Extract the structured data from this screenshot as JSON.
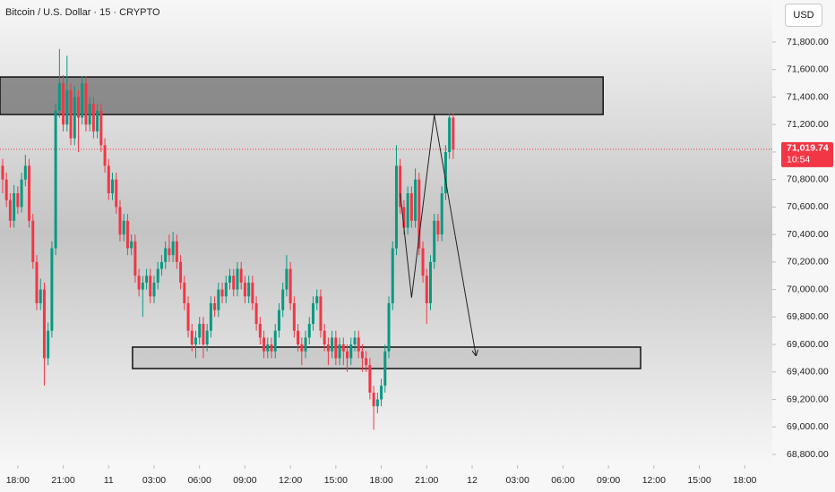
{
  "chart_data": {
    "type": "candlestick",
    "title": "Bitcoin / U.S. Dollar · 15 · CRYPTO",
    "currency_button": "USD",
    "up_color": "#089981",
    "down_color": "#f23645",
    "ylim": [
      68722,
      72106
    ],
    "xlim": [
      -0.7,
      202.8
    ],
    "yticks": [
      {
        "value": 68800,
        "label": "68,800.00"
      },
      {
        "value": 69000,
        "label": "69,000.00"
      },
      {
        "value": 69200,
        "label": "69,200.00"
      },
      {
        "value": 69400,
        "label": "69,400.00"
      },
      {
        "value": 69600,
        "label": "69,600.00"
      },
      {
        "value": 69800,
        "label": "69,800.00"
      },
      {
        "value": 70000,
        "label": "70,000.00"
      },
      {
        "value": 70200,
        "label": "70,200.00"
      },
      {
        "value": 70400,
        "label": "70,400.00"
      },
      {
        "value": 70600,
        "label": "70,600.00"
      },
      {
        "value": 70800,
        "label": "70,800.00"
      },
      {
        "value": 71000,
        "label": "71,000.00"
      },
      {
        "value": 71200,
        "label": "71,200.00"
      },
      {
        "value": 71400,
        "label": "71,400.00"
      },
      {
        "value": 71600,
        "label": "71,600.00"
      },
      {
        "value": 71800,
        "label": "71,800.00"
      }
    ],
    "xticks": [
      {
        "value": 4,
        "label": "18:00"
      },
      {
        "value": 16,
        "label": "21:00"
      },
      {
        "value": 28,
        "label": "11"
      },
      {
        "value": 40,
        "label": "03:00"
      },
      {
        "value": 52,
        "label": "06:00"
      },
      {
        "value": 64,
        "label": "09:00"
      },
      {
        "value": 76,
        "label": "12:00"
      },
      {
        "value": 88,
        "label": "15:00"
      },
      {
        "value": 100,
        "label": "18:00"
      },
      {
        "value": 112,
        "label": "21:00"
      },
      {
        "value": 124,
        "label": "12"
      },
      {
        "value": 136,
        "label": "03:00"
      },
      {
        "value": 148,
        "label": "06:00"
      },
      {
        "value": 160,
        "label": "09:00"
      },
      {
        "value": 172,
        "label": "12:00"
      },
      {
        "value": 184,
        "label": "15:00"
      },
      {
        "value": 196,
        "label": "18:00"
      }
    ],
    "candles": [
      [
        70900,
        70950,
        70700,
        70800
      ],
      [
        70800,
        70850,
        70600,
        70650
      ],
      [
        70650,
        70700,
        70450,
        70500
      ],
      [
        70500,
        70760,
        70450,
        70700
      ],
      [
        70700,
        70750,
        70550,
        70600
      ],
      [
        70600,
        70850,
        70560,
        70800
      ],
      [
        70800,
        70980,
        70750,
        70900
      ],
      [
        70900,
        70950,
        70450,
        70500
      ],
      [
        70500,
        70550,
        70150,
        70200
      ],
      [
        70200,
        70250,
        69850,
        69900
      ],
      [
        69900,
        70080,
        69850,
        70000
      ],
      [
        70000,
        70050,
        69300,
        69500
      ],
      [
        69500,
        69760,
        69450,
        69700
      ],
      [
        69700,
        70350,
        69650,
        70300
      ],
      [
        70300,
        71350,
        70250,
        71300
      ],
      [
        71300,
        71750,
        71250,
        71500
      ],
      [
        71500,
        71560,
        71150,
        71200
      ],
      [
        71200,
        71700,
        71150,
        71450
      ],
      [
        71450,
        71500,
        71050,
        71100
      ],
      [
        71100,
        71480,
        71050,
        71400
      ],
      [
        71400,
        71450,
        71000,
        71250
      ],
      [
        71250,
        71550,
        71200,
        71500
      ],
      [
        71500,
        71550,
        71150,
        71200
      ],
      [
        71200,
        71400,
        71150,
        71350
      ],
      [
        71350,
        71400,
        71100,
        71150
      ],
      [
        71150,
        71350,
        71100,
        71300
      ],
      [
        71300,
        71350,
        71000,
        71050
      ],
      [
        71050,
        71100,
        70850,
        70900
      ],
      [
        70900,
        70950,
        70650,
        70700
      ],
      [
        70700,
        70850,
        70650,
        70800
      ],
      [
        70800,
        70850,
        70550,
        70600
      ],
      [
        70600,
        70650,
        70350,
        70400
      ],
      [
        70400,
        70550,
        70350,
        70500
      ],
      [
        70500,
        70550,
        70250,
        70300
      ],
      [
        70300,
        70400,
        70250,
        70350
      ],
      [
        70350,
        70400,
        70050,
        70100
      ],
      [
        70100,
        70150,
        69950,
        70000
      ],
      [
        70000,
        70100,
        69800,
        70050
      ],
      [
        70050,
        70150,
        70000,
        70100
      ],
      [
        70100,
        70150,
        69900,
        69950
      ],
      [
        69950,
        70100,
        69900,
        70050
      ],
      [
        70050,
        70200,
        70000,
        70150
      ],
      [
        70150,
        70250,
        70100,
        70200
      ],
      [
        70200,
        70350,
        70150,
        70300
      ],
      [
        70300,
        70400,
        70200,
        70250
      ],
      [
        70250,
        70420,
        70200,
        70350
      ],
      [
        70350,
        70400,
        70150,
        70200
      ],
      [
        70200,
        70250,
        70000,
        70050
      ],
      [
        70050,
        70100,
        69850,
        69900
      ],
      [
        69900,
        69950,
        69650,
        69700
      ],
      [
        69700,
        69750,
        69550,
        69600
      ],
      [
        69600,
        69700,
        69500,
        69650
      ],
      [
        69650,
        69800,
        69600,
        69750
      ],
      [
        69750,
        69800,
        69500,
        69600
      ],
      [
        69600,
        69750,
        69550,
        69700
      ],
      [
        69700,
        69950,
        69650,
        69900
      ],
      [
        69900,
        69950,
        69800,
        69850
      ],
      [
        69850,
        70050,
        69800,
        70000
      ],
      [
        70000,
        70050,
        69900,
        69950
      ],
      [
        69950,
        70100,
        69900,
        70050
      ],
      [
        70050,
        70150,
        70000,
        70100
      ],
      [
        70100,
        70150,
        69950,
        70000
      ],
      [
        70000,
        70200,
        69950,
        70150
      ],
      [
        70150,
        70200,
        70000,
        70050
      ],
      [
        70050,
        70100,
        69900,
        69950
      ],
      [
        69950,
        70100,
        69900,
        70050
      ],
      [
        70050,
        70100,
        69850,
        69900
      ],
      [
        69900,
        69950,
        69700,
        69750
      ],
      [
        69750,
        69800,
        69600,
        69650
      ],
      [
        69650,
        69700,
        69500,
        69550
      ],
      [
        69550,
        69650,
        69500,
        69600
      ],
      [
        69600,
        69650,
        69500,
        69550
      ],
      [
        69550,
        69750,
        69500,
        69700
      ],
      [
        69700,
        69900,
        69650,
        69850
      ],
      [
        69850,
        70050,
        69800,
        70000
      ],
      [
        70000,
        70250,
        69950,
        70150
      ],
      [
        70150,
        70200,
        69850,
        69900
      ],
      [
        69900,
        69950,
        69650,
        69700
      ],
      [
        69700,
        69750,
        69550,
        69600
      ],
      [
        69600,
        69650,
        69450,
        69550
      ],
      [
        69550,
        69700,
        69500,
        69650
      ],
      [
        69650,
        69800,
        69600,
        69750
      ],
      [
        69750,
        69950,
        69700,
        69900
      ],
      [
        69900,
        70000,
        69850,
        69950
      ],
      [
        69950,
        70000,
        69650,
        69700
      ],
      [
        69700,
        69750,
        69550,
        69600
      ],
      [
        69600,
        69650,
        69450,
        69550
      ],
      [
        69550,
        69700,
        69500,
        69650
      ],
      [
        69650,
        69700,
        69450,
        69500
      ],
      [
        69500,
        69650,
        69450,
        69600
      ],
      [
        69600,
        69650,
        69450,
        69550
      ],
      [
        69550,
        69600,
        69400,
        69500
      ],
      [
        69500,
        69650,
        69450,
        69600
      ],
      [
        69600,
        69700,
        69550,
        69650
      ],
      [
        69650,
        69700,
        69500,
        69550
      ],
      [
        69550,
        69600,
        69400,
        69500
      ],
      [
        69500,
        69550,
        69400,
        69450
      ],
      [
        69450,
        69500,
        69200,
        69250
      ],
      [
        69250,
        69300,
        68980,
        69150
      ],
      [
        69150,
        69250,
        69100,
        69200
      ],
      [
        69200,
        69350,
        69150,
        69300
      ],
      [
        69300,
        69600,
        69250,
        69550
      ],
      [
        69550,
        69950,
        69500,
        69900
      ],
      [
        69900,
        70350,
        69850,
        70300
      ],
      [
        70300,
        71050,
        70250,
        70900
      ],
      [
        70900,
        70950,
        70550,
        70600
      ],
      [
        70600,
        70650,
        70400,
        70450
      ],
      [
        70450,
        70750,
        70400,
        70700
      ],
      [
        70700,
        70750,
        70450,
        70500
      ],
      [
        70500,
        70880,
        70450,
        70800
      ],
      [
        70800,
        70850,
        70250,
        70300
      ],
      [
        70300,
        70350,
        70050,
        70100
      ],
      [
        70100,
        70150,
        69750,
        69900
      ],
      [
        69900,
        70250,
        69850,
        70200
      ],
      [
        70200,
        70550,
        70150,
        70500
      ],
      [
        70500,
        70550,
        70350,
        70400
      ],
      [
        70400,
        70750,
        70350,
        70700
      ],
      [
        70700,
        71050,
        70650,
        71000
      ],
      [
        71000,
        71280,
        70950,
        71250
      ],
      [
        71250,
        71280,
        70950,
        71020
      ]
    ],
    "zones": [
      {
        "x": [
          -0.7,
          158.6
        ],
        "y": [
          71273,
          71546
        ]
      },
      {
        "x": [
          34.3,
          168.5
        ],
        "y": [
          69425,
          69581
        ]
      }
    ],
    "drawings": [
      {
        "points": [
          [
            105,
            70700
          ],
          [
            108,
            69940
          ],
          [
            114,
            71270
          ],
          [
            125,
            69520
          ]
        ]
      }
    ],
    "last_price": {
      "value": 71019.74,
      "label": "71,019.74",
      "countdown": "10:54"
    }
  }
}
